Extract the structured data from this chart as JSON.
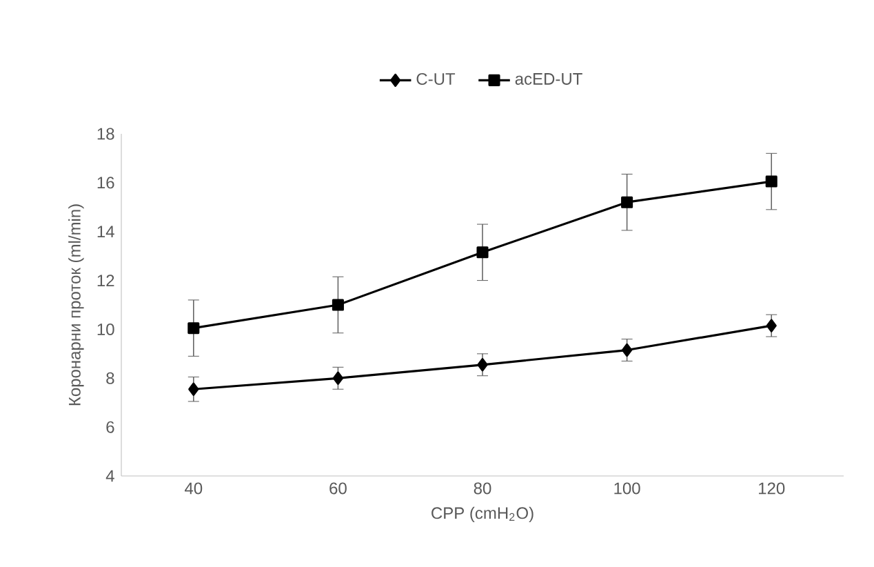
{
  "chart_data": {
    "type": "line",
    "categories": [
      "40",
      "60",
      "80",
      "100",
      "120"
    ],
    "series": [
      {
        "name": "C-UT",
        "color": "#000000",
        "marker": "diamond",
        "values": [
          7.55,
          8.0,
          8.55,
          9.15,
          10.15
        ],
        "errors": [
          0.5,
          0.45,
          0.45,
          0.45,
          0.45
        ]
      },
      {
        "name": "acED-UT",
        "color": "#000000",
        "marker": "square",
        "values": [
          10.05,
          11.0,
          13.15,
          15.2,
          16.05
        ],
        "errors": [
          1.15,
          1.15,
          1.15,
          1.15,
          1.15
        ]
      }
    ],
    "xlabel": "CPP (cmH$_{2}$O)",
    "ylabel": "Коронарни проток (ml/min)",
    "ylim": [
      4,
      18
    ],
    "yticks": [
      4,
      6,
      8,
      10,
      12,
      14,
      16,
      18
    ],
    "grid": false,
    "legend": "top"
  }
}
